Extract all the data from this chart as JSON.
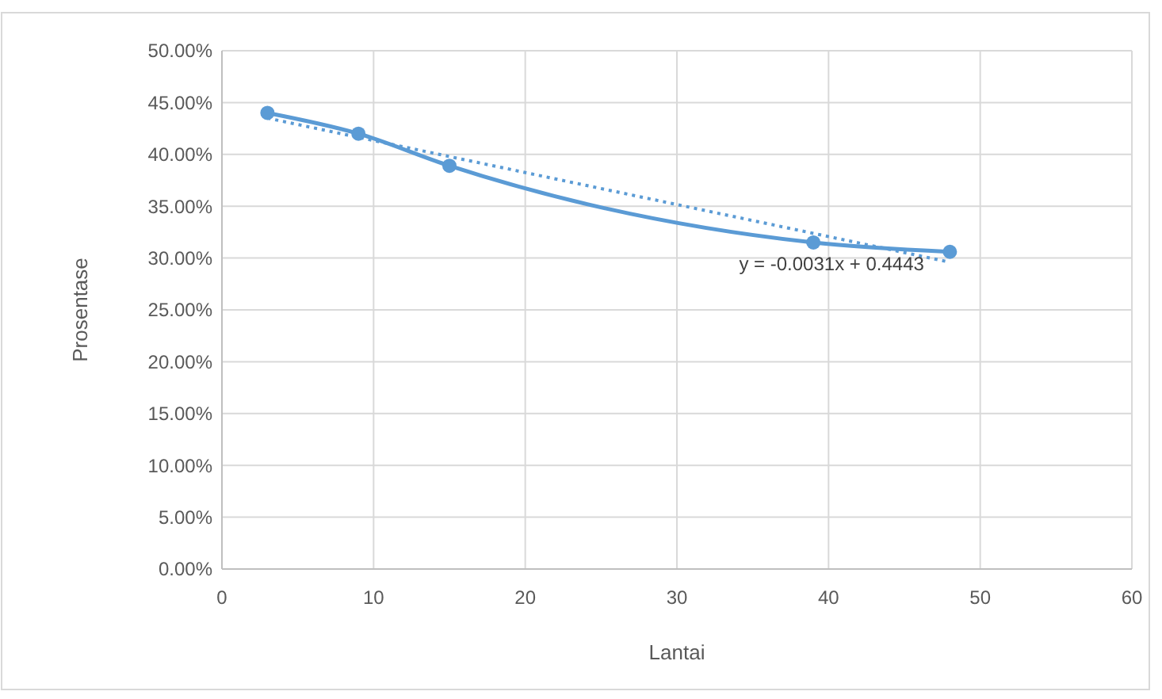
{
  "chart_data": {
    "type": "line",
    "xlabel": "Lantai",
    "ylabel": "Prosentase",
    "xlim": [
      0,
      60
    ],
    "xticks": [
      0,
      10,
      20,
      30,
      40,
      50,
      60
    ],
    "ylim": [
      0,
      0.5
    ],
    "yticks": [
      {
        "value": 0,
        "label": "0.00%"
      },
      {
        "value": 0.05,
        "label": "5.00%"
      },
      {
        "value": 0.1,
        "label": "10.00%"
      },
      {
        "value": 0.15,
        "label": "15.00%"
      },
      {
        "value": 0.2,
        "label": "20.00%"
      },
      {
        "value": 0.25,
        "label": "25.00%"
      },
      {
        "value": 0.3,
        "label": "30.00%"
      },
      {
        "value": 0.35,
        "label": "35.00%"
      },
      {
        "value": 0.4,
        "label": "40.00%"
      },
      {
        "value": 0.45,
        "label": "45.00%"
      },
      {
        "value": 0.5,
        "label": "50.00%"
      }
    ],
    "grid": true,
    "series": [
      {
        "color": "#5b9bd5",
        "x": [
          3,
          9,
          15,
          39,
          48
        ],
        "values": [
          0.44,
          0.42,
          0.389,
          0.315,
          0.306
        ],
        "marker": "circle",
        "line_style": "solid"
      },
      {
        "color": "#5b9bd5",
        "x": [
          3,
          48
        ],
        "values": [
          0.435,
          0.296
        ],
        "marker": "none",
        "line_style": "dotted"
      }
    ],
    "annotations": [
      "y = -0.0031x + 0.4443"
    ]
  }
}
